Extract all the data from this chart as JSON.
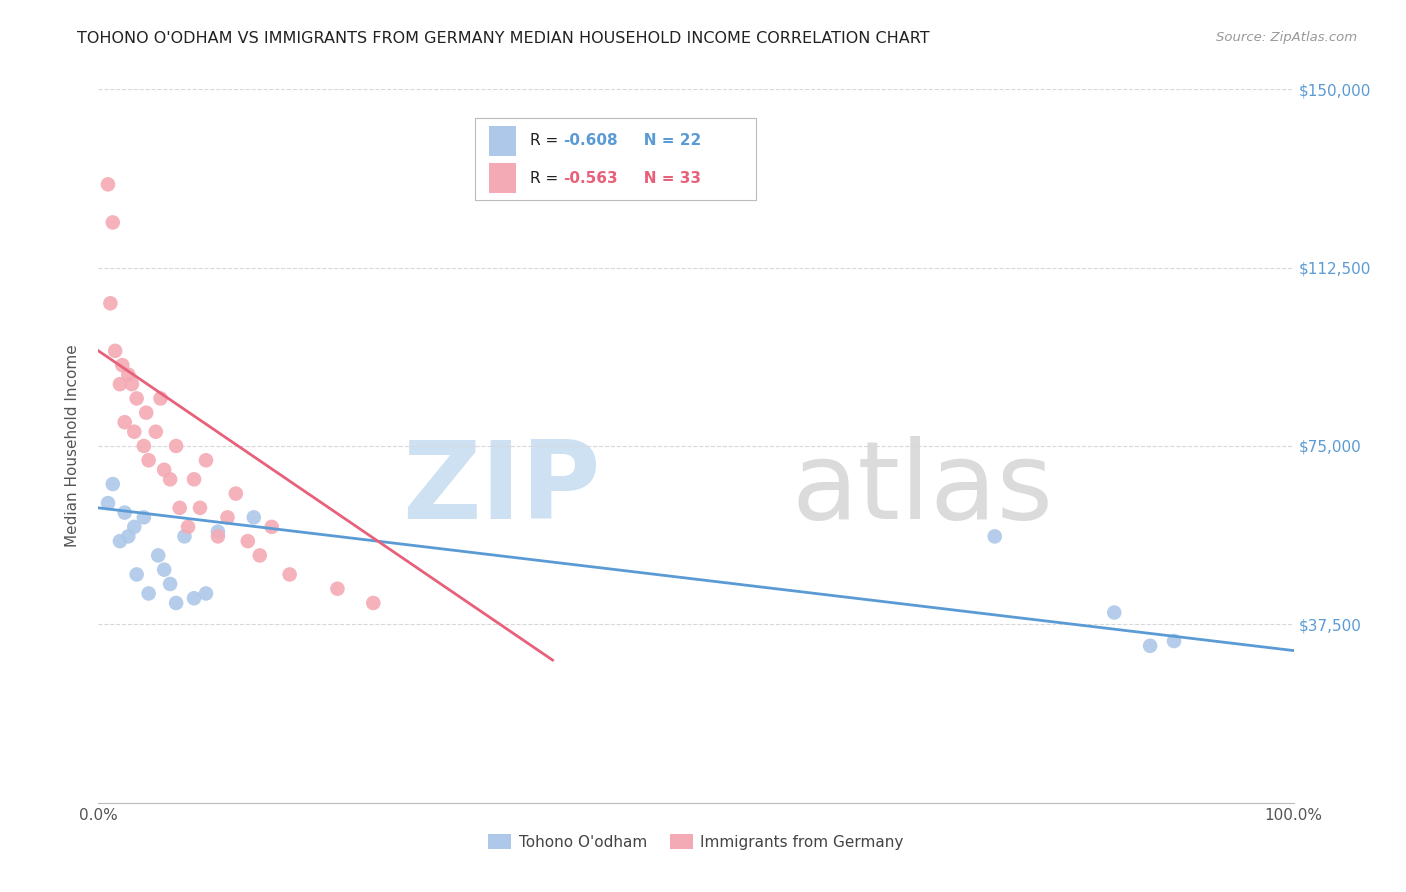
{
  "title": "TOHONO O'ODHAM VS IMMIGRANTS FROM GERMANY MEDIAN HOUSEHOLD INCOME CORRELATION CHART",
  "source": "Source: ZipAtlas.com",
  "ylabel": "Median Household Income",
  "xmin": 0.0,
  "xmax": 1.0,
  "ymin": 0,
  "ymax": 150000,
  "yticks": [
    0,
    37500,
    75000,
    112500,
    150000
  ],
  "ytick_labels": [
    "",
    "$37,500",
    "$75,000",
    "$112,500",
    "$150,000"
  ],
  "blue_R": "-0.608",
  "blue_N": "22",
  "pink_R": "-0.563",
  "pink_N": "33",
  "blue_color": "#adc8e8",
  "blue_line_color": "#5b9bd5",
  "pink_color": "#f4aab4",
  "pink_line_color": "#e8607a",
  "blue_scatter_x": [
    0.008,
    0.012,
    0.018,
    0.022,
    0.025,
    0.03,
    0.032,
    0.038,
    0.042,
    0.05,
    0.055,
    0.06,
    0.065,
    0.072,
    0.08,
    0.09,
    0.1,
    0.13,
    0.75,
    0.85,
    0.88,
    0.9
  ],
  "blue_scatter_y": [
    63000,
    67000,
    55000,
    61000,
    56000,
    58000,
    48000,
    60000,
    44000,
    52000,
    49000,
    46000,
    42000,
    56000,
    43000,
    44000,
    57000,
    60000,
    56000,
    40000,
    33000,
    34000
  ],
  "pink_scatter_x": [
    0.008,
    0.01,
    0.012,
    0.014,
    0.018,
    0.02,
    0.022,
    0.025,
    0.028,
    0.03,
    0.032,
    0.038,
    0.04,
    0.042,
    0.048,
    0.052,
    0.055,
    0.06,
    0.065,
    0.068,
    0.075,
    0.08,
    0.085,
    0.09,
    0.1,
    0.108,
    0.115,
    0.125,
    0.135,
    0.145,
    0.16,
    0.2,
    0.23
  ],
  "pink_scatter_y": [
    130000,
    105000,
    122000,
    95000,
    88000,
    92000,
    80000,
    90000,
    88000,
    78000,
    85000,
    75000,
    82000,
    72000,
    78000,
    85000,
    70000,
    68000,
    75000,
    62000,
    58000,
    68000,
    62000,
    72000,
    56000,
    60000,
    65000,
    55000,
    52000,
    58000,
    48000,
    45000,
    42000
  ],
  "blue_line_x": [
    0.0,
    1.0
  ],
  "blue_line_y": [
    62000,
    32000
  ],
  "pink_line_x": [
    0.0,
    0.38
  ],
  "pink_line_y": [
    95000,
    30000
  ],
  "background_color": "#ffffff",
  "grid_color": "#d8d8d8",
  "title_color": "#222222",
  "axis_label_color": "#555555",
  "right_tick_color": "#5b9bd5",
  "legend_blue_label": "Tohono O'odham",
  "legend_pink_label": "Immigrants from Germany",
  "watermark_zip_color": "#c5dcf0",
  "watermark_atlas_color": "#d5d5d5"
}
